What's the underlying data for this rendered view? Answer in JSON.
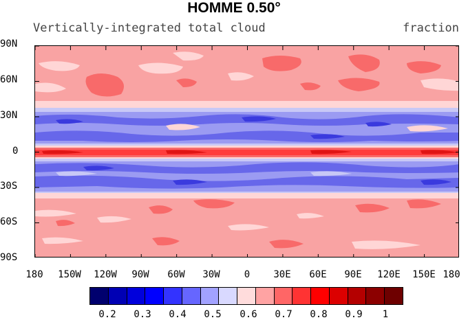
{
  "title": "HOMME 0.50°",
  "subtitle_left": "Vertically-integrated total cloud",
  "subtitle_right": "fraction",
  "lat_labels": [
    "90N",
    "60N",
    "30N",
    "0",
    "30S",
    "60S",
    "90S"
  ],
  "lon_labels": [
    "180",
    "150W",
    "120W",
    "90W",
    "60W",
    "30W",
    "0",
    "30E",
    "60E",
    "90E",
    "120E",
    "150E",
    "180"
  ],
  "colorbar": {
    "labels": [
      "0.2",
      "0.3",
      "0.4",
      "0.5",
      "0.6",
      "0.7",
      "0.8",
      "0.9",
      "1"
    ],
    "colors": [
      "#00006e",
      "#0000b4",
      "#0000dc",
      "#0000ff",
      "#3333ff",
      "#6666ff",
      "#a2a2ff",
      "#d9d9ff",
      "#ffdcdc",
      "#ffa3a3",
      "#ff6666",
      "#ff3333",
      "#ff0000",
      "#dc0000",
      "#b40000",
      "#8c0000",
      "#6e0000"
    ]
  },
  "map_colors": {
    "background": "#f9a3a3",
    "light_pink": "#ffd6d6",
    "mid_red": "#f86a6a",
    "pale_blue": "#c8c8f6",
    "light_blue": "#9b9bf2",
    "mid_blue": "#6767ea",
    "deep_blue": "#3a3ade",
    "red": "#ff3c3c",
    "dark_red": "#e01414"
  }
}
